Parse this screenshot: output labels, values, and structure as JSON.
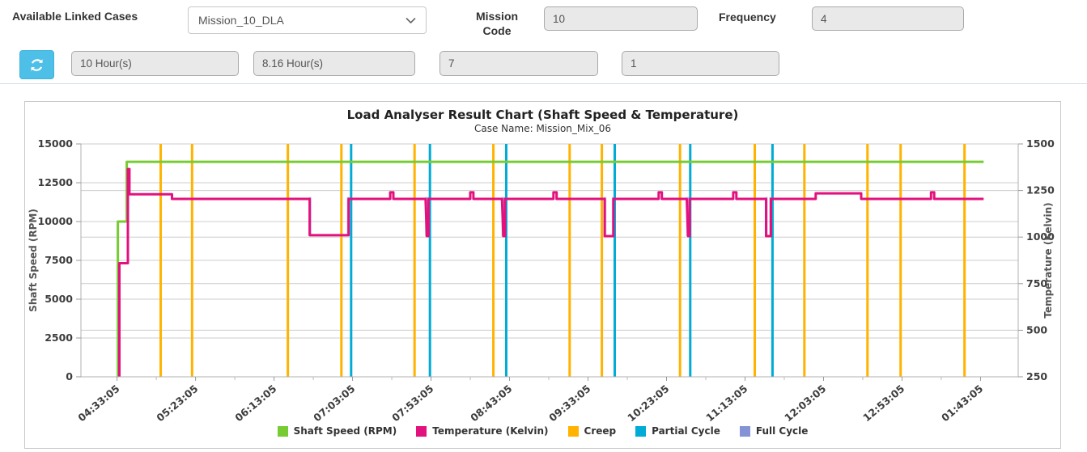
{
  "toolbar": {
    "available_linked_cases_label": "Available Linked Cases",
    "case_select_value": "Mission_10_DLA",
    "mission_code_label": "Mission Code",
    "mission_code_value": "10",
    "frequency_label": "Frequency",
    "frequency_value": "4",
    "total_duration_value": "10 Hour(s)",
    "analysed_duration_value": "8.16 Hour(s)",
    "field3_value": "7",
    "field4_value": "1",
    "refresh_button_color": "#4ec0e8"
  },
  "chart_data": {
    "type": "line",
    "title": "Load Analyser Result Chart (Shaft Speed & Temperature)",
    "subtitle": "Case Name: Mission_Mix_06",
    "legend_position": "bottom",
    "grid": true,
    "x_domain_minutes": [
      -23,
      574
    ],
    "x_axis": {
      "tick_interval_minutes": 50,
      "tick_labels": [
        "04:33:05",
        "05:23:05",
        "06:13:05",
        "07:03:05",
        "07:53:05",
        "08:43:05",
        "09:33:05",
        "10:23:05",
        "11:13:05",
        "12:03:05",
        "12:53:05",
        "01:43:05"
      ]
    },
    "y_left": {
      "label": "Shaft Speed (RPM)",
      "min": 0,
      "max": 15000,
      "step": 2500
    },
    "y_right": {
      "label": "Temperature (Kelvin)",
      "min": 250,
      "max": 1500,
      "step": 250
    },
    "series": [
      {
        "name": "Shaft Speed (RPM)",
        "color": "#77cc33",
        "axis": "left",
        "type": "line",
        "points": [
          [
            0.5,
            0
          ],
          [
            0.5,
            10000
          ],
          [
            6.2,
            10000
          ],
          [
            6.2,
            13850
          ],
          [
            552,
            13850
          ]
        ]
      },
      {
        "name": "Temperature (Kelvin)",
        "color": "#e3117e",
        "axis": "right",
        "type": "line",
        "points": [
          [
            1.5,
            250
          ],
          [
            1.5,
            860
          ],
          [
            6.9,
            860
          ],
          [
            6.9,
            1365
          ],
          [
            7.9,
            1365
          ],
          [
            7.9,
            1230
          ],
          [
            35,
            1230
          ],
          [
            35,
            1205
          ],
          [
            122.7,
            1205
          ],
          [
            122.7,
            1010
          ],
          [
            147.5,
            1010
          ],
          [
            147.5,
            1205
          ],
          [
            174,
            1205
          ],
          [
            174,
            1240
          ],
          [
            176,
            1240
          ],
          [
            176,
            1205
          ],
          [
            196.5,
            1205
          ],
          [
            197.3,
            1005
          ],
          [
            198.4,
            1005
          ],
          [
            198.4,
            1205
          ],
          [
            225,
            1205
          ],
          [
            225,
            1240
          ],
          [
            227,
            1240
          ],
          [
            227,
            1205
          ],
          [
            245.2,
            1205
          ],
          [
            246,
            1005
          ],
          [
            247.1,
            1005
          ],
          [
            247.1,
            1205
          ],
          [
            278,
            1205
          ],
          [
            278,
            1240
          ],
          [
            280,
            1240
          ],
          [
            280,
            1205
          ],
          [
            310.6,
            1205
          ],
          [
            310.6,
            1005
          ],
          [
            316.2,
            1005
          ],
          [
            316.2,
            1205
          ],
          [
            345,
            1205
          ],
          [
            345,
            1240
          ],
          [
            347,
            1240
          ],
          [
            347,
            1205
          ],
          [
            362.9,
            1205
          ],
          [
            363.7,
            1005
          ],
          [
            364.8,
            1005
          ],
          [
            364.8,
            1205
          ],
          [
            392.5,
            1205
          ],
          [
            392.5,
            1240
          ],
          [
            394.5,
            1240
          ],
          [
            394.5,
            1205
          ],
          [
            413.4,
            1205
          ],
          [
            413.4,
            1005
          ],
          [
            416.5,
            1005
          ],
          [
            416.5,
            1205
          ],
          [
            445,
            1205
          ],
          [
            445,
            1235
          ],
          [
            474,
            1235
          ],
          [
            474,
            1205
          ],
          [
            518.5,
            1205
          ],
          [
            518.5,
            1240
          ],
          [
            520.5,
            1240
          ],
          [
            520.5,
            1205
          ],
          [
            552,
            1205
          ]
        ]
      },
      {
        "name": "Creep",
        "color": "#ffb300",
        "type": "vline",
        "x": [
          27.8,
          47.8,
          108.8,
          142.9,
          189.5,
          239.7,
          288.3,
          308.8,
          358.6,
          406.2,
          437.8,
          478.0,
          499.1,
          539.8
        ]
      },
      {
        "name": "Partial Cycle",
        "color": "#00abd6",
        "type": "vline",
        "x": [
          149.1,
          199.3,
          247.9,
          317.0,
          365.1,
          417.5
        ]
      },
      {
        "name": "Full Cycle",
        "color": "#8393d5",
        "type": "vsegment",
        "y_range": [
          1005,
          1215
        ],
        "x": [
          123.0,
          147.2,
          197.0,
          198.2,
          245.7,
          246.9,
          310.9,
          315.9,
          363.3,
          364.6,
          413.7,
          416.2
        ]
      }
    ]
  }
}
